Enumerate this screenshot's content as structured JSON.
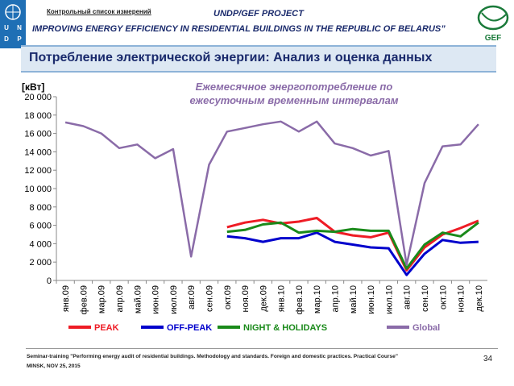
{
  "header": {
    "undp_letters": [
      "U",
      "N",
      "D",
      "P"
    ],
    "top_link": "Контрольный список измерений",
    "project_title": "UNDP/GEF PROJECT",
    "project_subtitle": "IMPROVING ENERGY EFFICIENCY IN RESIDENTIAL BUILDINGS IN THE REPUBLIC OF BELARUS”",
    "gef_label": "GEF"
  },
  "banner_title": "Потребление электрической энергии: Анализ и оценка данных",
  "footer": {
    "line1": "Seminar-training \"Performing energy audit of residential buildings. Methodology and standards. Foreign and domestic practices. Practical Course\"",
    "line2": "MINSK, NOV 25, 2015",
    "page_number": "34"
  },
  "colors": {
    "peak": "#ee1c25",
    "offpeak": "#0000cc",
    "night": "#1a8a1a",
    "global": "#8a6ba8",
    "banner": "#dde8f3",
    "title": "#1a2a6c"
  },
  "chart_data": {
    "type": "line",
    "title": "Ежемесячное энергопотребление по ежесуточным временным интервалам",
    "ylabel": "[кВт]",
    "ylim": [
      0,
      20000
    ],
    "ytick_labels": [
      "0",
      "2 000",
      "4 000",
      "6 000",
      "8 000",
      "10 000",
      "12 000",
      "14 000",
      "16 000",
      "18 000",
      "20 000"
    ],
    "yticks": [
      0,
      2000,
      4000,
      6000,
      8000,
      10000,
      12000,
      14000,
      16000,
      18000,
      20000
    ],
    "categories": [
      "янв.09",
      "фев.09",
      "мар.09",
      "апр.09",
      "май.09",
      "июн.09",
      "июл.09",
      "авг.09",
      "сен.09",
      "окт.09",
      "ноя.09",
      "дек.09",
      "янв.10",
      "фев.10",
      "мар.10",
      "апр.10",
      "май.10",
      "июн.10",
      "июл.10",
      "авг.10",
      "сен.10",
      "окт.10",
      "ноя.10",
      "дек.10"
    ],
    "series": [
      {
        "name": "PEAK",
        "key": "peak",
        "values": [
          null,
          null,
          null,
          null,
          null,
          null,
          null,
          null,
          null,
          5800,
          6300,
          6600,
          6200,
          6400,
          6800,
          5300,
          4900,
          4700,
          5200,
          1100,
          3600,
          5000,
          5700,
          6500
        ]
      },
      {
        "name": "OFF-PEAK",
        "key": "offpeak",
        "values": [
          null,
          null,
          null,
          null,
          null,
          null,
          null,
          null,
          null,
          4800,
          4600,
          4200,
          4600,
          4600,
          5200,
          4200,
          3900,
          3600,
          3500,
          600,
          2900,
          4400,
          4100,
          4200
        ]
      },
      {
        "name": "NIGHT & HOLIDAYS",
        "key": "night",
        "values": [
          null,
          null,
          null,
          null,
          null,
          null,
          null,
          null,
          null,
          5300,
          5500,
          6100,
          6300,
          5200,
          5400,
          5300,
          5600,
          5400,
          5400,
          1300,
          3900,
          5200,
          4800,
          6300
        ]
      },
      {
        "name": "Global",
        "key": "global",
        "values": [
          17200,
          16800,
          16000,
          14400,
          14800,
          13300,
          14300,
          2600,
          12600,
          16200,
          16600,
          17000,
          17300,
          16200,
          17300,
          14900,
          14400,
          13600,
          14100,
          1700,
          10600,
          14600,
          14800,
          17000
        ]
      }
    ],
    "legend": [
      "PEAK",
      "OFF-PEAK",
      "NIGHT & HOLIDAYS",
      "Global"
    ]
  }
}
